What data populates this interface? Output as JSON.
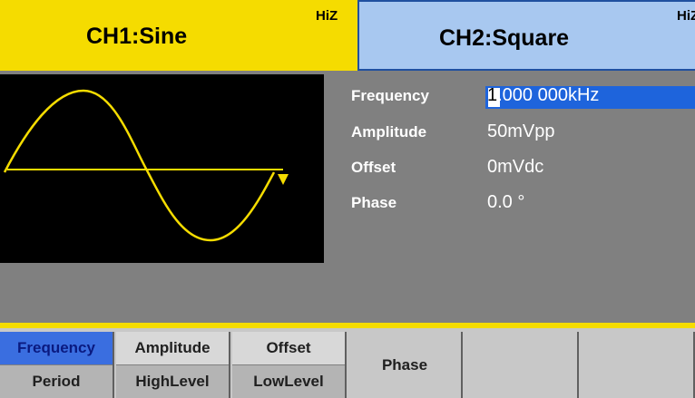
{
  "header": {
    "ch1": {
      "title": "CH1:Sine",
      "load": "HiZ"
    },
    "ch2": {
      "title": "CH2:Square",
      "load": "HiZ"
    }
  },
  "parameters": [
    {
      "label": "Frequency",
      "value": "1.000 000kHz"
    },
    {
      "label": "Amplitude",
      "value": "50mVpp"
    },
    {
      "label": "Offset",
      "value": "0mVdc"
    },
    {
      "label": "Phase",
      "value": "0.0 °"
    }
  ],
  "softkeys": [
    {
      "top": "Frequency",
      "bottom": "Period"
    },
    {
      "top": "Amplitude",
      "bottom": "HighLevel"
    },
    {
      "top": "Offset",
      "bottom": "LowLevel"
    },
    {
      "label": "Phase"
    }
  ]
}
